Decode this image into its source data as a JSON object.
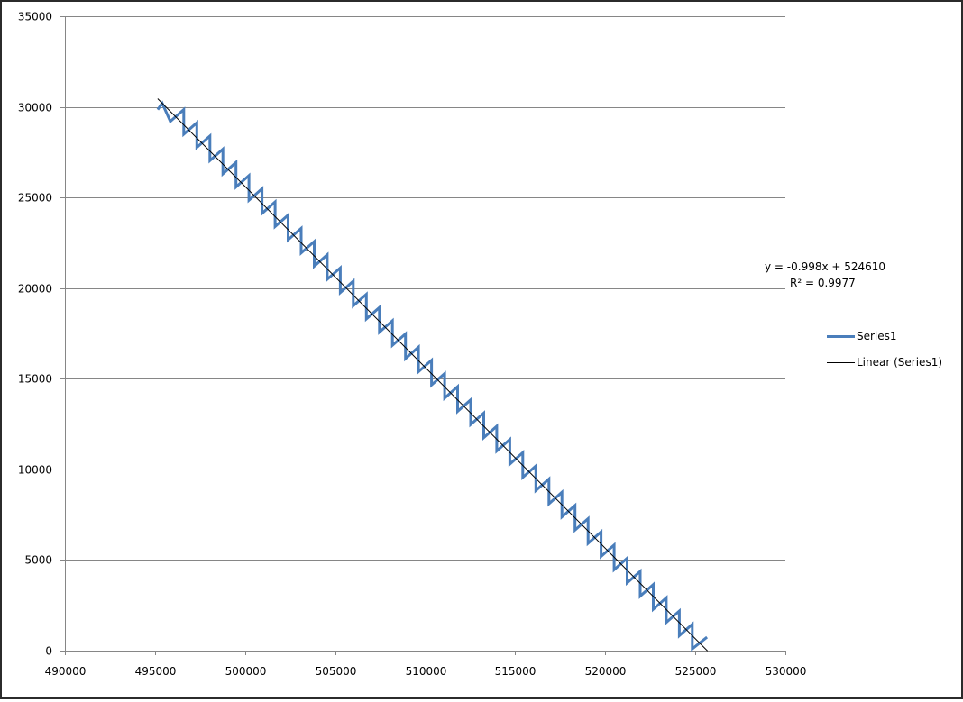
{
  "chart_data": {
    "type": "line",
    "title": "",
    "xlabel": "",
    "ylabel": "",
    "xlim": [
      490000,
      530000
    ],
    "ylim": [
      0,
      35000
    ],
    "x_ticks": [
      490000,
      495000,
      500000,
      505000,
      510000,
      515000,
      520000,
      525000,
      530000
    ],
    "y_ticks": [
      0,
      5000,
      10000,
      15000,
      20000,
      25000,
      30000,
      35000
    ],
    "x_tick_labels": [
      "490000",
      "495000",
      "500000",
      "505000",
      "510000",
      "515000",
      "520000",
      "525000",
      "530000"
    ],
    "y_tick_labels": [
      "0",
      "5000",
      "10000",
      "15000",
      "20000",
      "25000",
      "30000",
      "35000"
    ],
    "grid": {
      "horizontal": true,
      "vertical": false
    },
    "legend_position": "right",
    "series": [
      {
        "name": "Series1",
        "color": "#4a7ebb",
        "line_width": 3,
        "pattern": "sawtooth",
        "lead_in_points": [
          [
            495150,
            29850
          ],
          [
            495400,
            30200
          ],
          [
            495850,
            29200
          ]
        ],
        "sawtooth": {
          "first_x": 496600,
          "first_top_y": 29850,
          "period_x": 724,
          "drop_y": 1360,
          "rise_y": 632,
          "count": 40
        },
        "tail_point": [
          525650,
          740
        ]
      },
      {
        "name": "Linear (Series1)",
        "color": "#000000",
        "line_width": 1,
        "type": "trendline",
        "slope": -0.998,
        "intercept": 524610,
        "x_range": [
          495150,
          525680
        ]
      }
    ],
    "annotations": [
      {
        "text": "y = -0.998x + 524610"
      },
      {
        "text": "R² = 0.9977"
      }
    ]
  },
  "legend": {
    "items": [
      {
        "label": "Series1",
        "color": "#4a7ebb"
      },
      {
        "label": "Linear (Series1)",
        "color": "#000000"
      }
    ]
  },
  "trendline_equation": "y = -0.998x + 524610",
  "trendline_r2": "R² = 0.9977"
}
